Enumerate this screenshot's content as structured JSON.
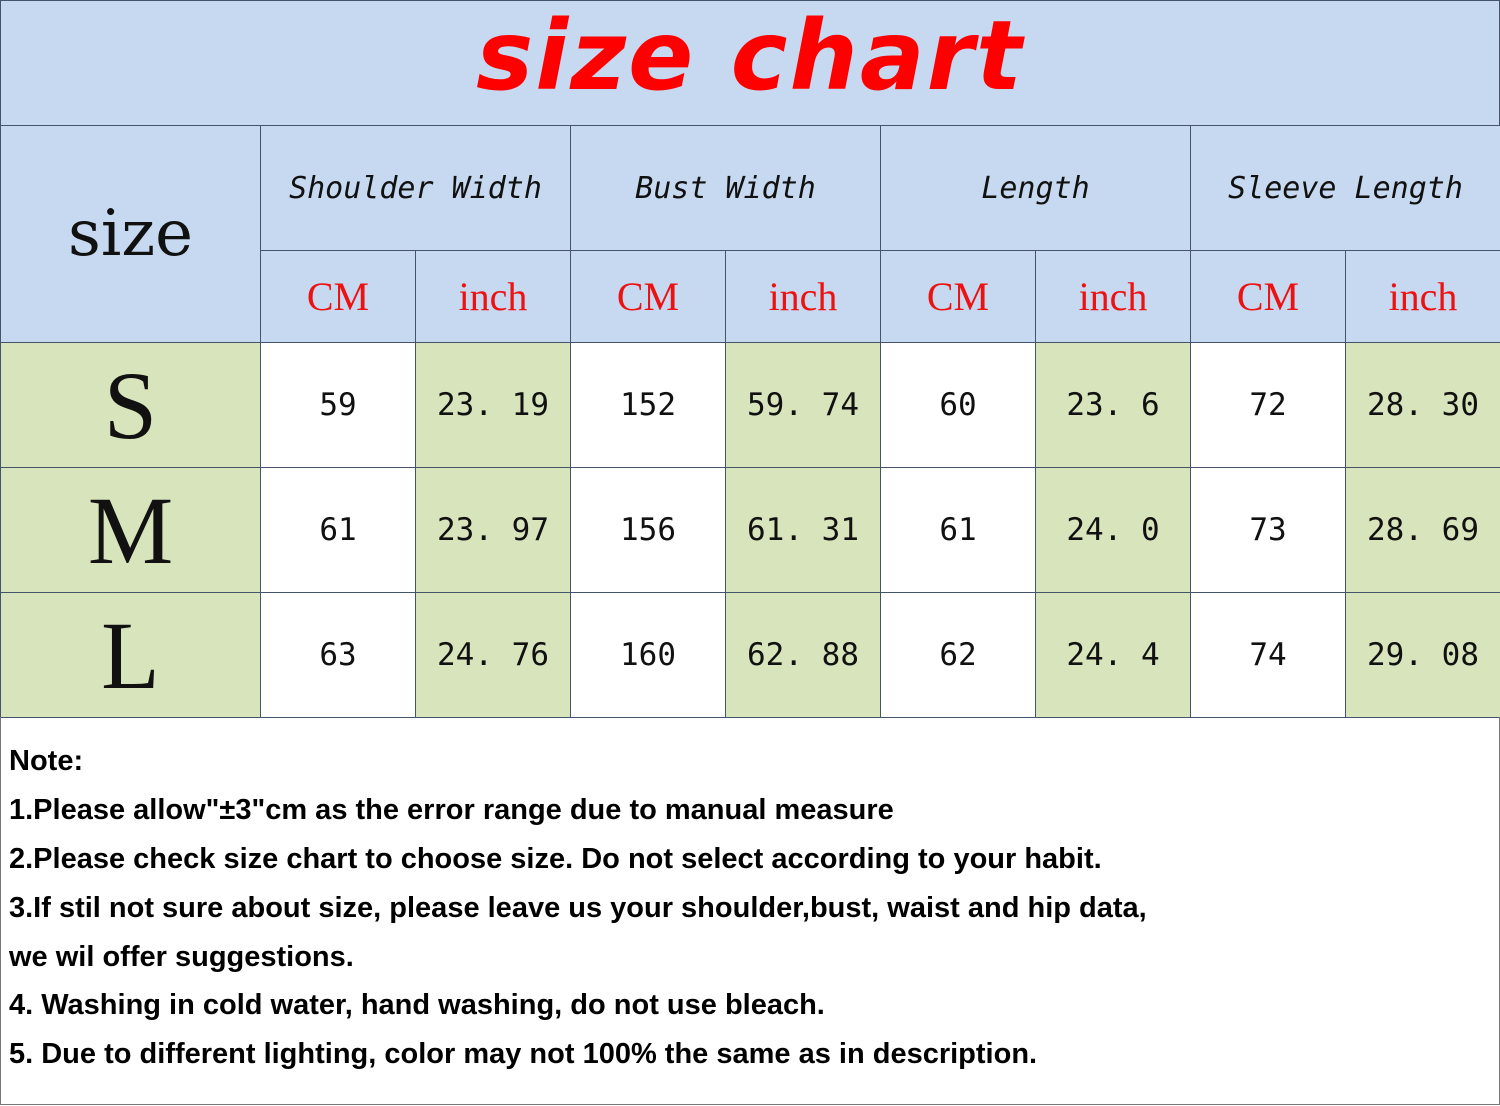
{
  "title": "size chart",
  "size_header": "size",
  "measurements": [
    "Shoulder Width",
    "Bust Width",
    "Length",
    "Sleeve Length"
  ],
  "units": [
    "CM",
    "inch"
  ],
  "rows": [
    {
      "size": "S",
      "values": [
        "59",
        "23. 19",
        "152",
        "59. 74",
        "60",
        "23. 6",
        "72",
        "28. 30"
      ]
    },
    {
      "size": "M",
      "values": [
        "61",
        "23. 97",
        "156",
        "61. 31",
        "61",
        "24. 0",
        "73",
        "28. 69"
      ]
    },
    {
      "size": "L",
      "values": [
        "63",
        "24. 76",
        "160",
        "62. 88",
        "62",
        "24. 4",
        "74",
        "29. 08"
      ]
    }
  ],
  "notes": [
    "Note:",
    "1.Please allow\"±3\"cm as the error range due to manual measure",
    "2.Please check size chart to choose size. Do not select according to your habit.",
    "3.If stil not sure about size, please leave us your shoulder,bust, waist and hip data,",
    "we wil offer suggestions.",
    "4. Washing in cold water, hand washing, do not use bleach.",
    "5. Due to different lighting, color may not 100% the same as in description."
  ],
  "colors": {
    "header_bg": "#c6d9f0",
    "highlight_bg": "#d8e4bc",
    "title": "#ff0000",
    "unit": "#ee1111"
  }
}
